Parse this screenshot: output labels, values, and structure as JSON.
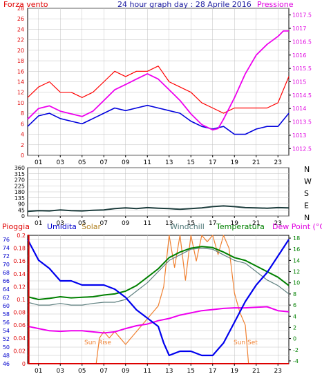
{
  "header": {
    "title": "24 hour graph day : 28 Aprile 2016"
  },
  "panels": {
    "wind": {
      "left_title": "Forza vento",
      "right_title": "Pressione"
    }
  },
  "legend": {
    "rain": "Pioggia",
    "humidity": "Umidita",
    "solar": "Solar",
    "windchill": "Windchill",
    "temperature": "Temperatura",
    "dewpoint": "Dew Point (°C)"
  },
  "annotations": {
    "sun_rise": "Sun Rise",
    "sun_set": "Sun Set"
  },
  "colors": {
    "wind_gust": "#ff0000",
    "wind_avg": "#0000dd",
    "pressure": "#ee00ee",
    "direction": "#1d3d3d",
    "rain": "#dd0000",
    "humidity": "#0000ee",
    "solar": "#f08030",
    "windchill": "#5f8080",
    "temperature": "#008000",
    "dewpoint": "#ee00ee",
    "grid": "#c0c0c0"
  },
  "chart_data": [
    {
      "type": "line",
      "name": "wind-pressure",
      "x_tick_labels": [
        "01",
        "03",
        "05",
        "07",
        "09",
        "11",
        "13",
        "15",
        "17",
        "19",
        "21",
        "23"
      ],
      "y_left": {
        "label": "Forza vento",
        "ylim": [
          0,
          28
        ],
        "ticks": [
          "0",
          "2",
          "4",
          "6",
          "8",
          "10",
          "12",
          "14",
          "16",
          "18",
          "20",
          "22",
          "24",
          "26",
          "28"
        ]
      },
      "y_right": {
        "label": "Pressione",
        "ylim": [
          1012.25,
          1017.75
        ],
        "ticks": [
          "1012.5",
          "1013",
          "1013.5",
          "1014",
          "1014.5",
          "1015",
          "1015.5",
          "1016",
          "1016.5",
          "1017",
          "1017.5"
        ]
      },
      "series": [
        {
          "key": "gust",
          "axis": "left",
          "hours": [
            0,
            1,
            2,
            3,
            4,
            5,
            6,
            7,
            8,
            9,
            10,
            11,
            12,
            13,
            14,
            15,
            16,
            17,
            18,
            19,
            20,
            21,
            22,
            23,
            24
          ],
          "values": [
            11,
            13,
            14,
            12,
            12,
            11,
            12,
            14,
            16,
            15,
            16,
            16,
            17,
            14,
            13,
            12,
            10,
            9,
            8,
            9,
            9,
            9,
            9,
            10,
            15
          ]
        },
        {
          "key": "avg",
          "axis": "left",
          "hours": [
            0,
            1,
            2,
            3,
            4,
            5,
            6,
            7,
            8,
            9,
            10,
            11,
            12,
            13,
            14,
            15,
            16,
            17,
            18,
            19,
            20,
            21,
            22,
            23,
            24
          ],
          "values": [
            5.5,
            7.5,
            8,
            7,
            6.5,
            6,
            7,
            8,
            9,
            8.5,
            9,
            9.5,
            9,
            8.5,
            8,
            6.5,
            5.5,
            5,
            5.5,
            4,
            4,
            5,
            5.5,
            5.5,
            8
          ]
        },
        {
          "key": "pressure",
          "axis": "right",
          "hours": [
            0,
            1,
            2,
            3,
            4,
            5,
            6,
            7,
            8,
            9,
            10,
            11,
            12,
            13,
            14,
            15,
            16,
            17,
            17.5,
            18,
            19,
            20,
            21,
            22,
            23,
            23.5,
            24
          ],
          "values": [
            1013.6,
            1014.0,
            1014.1,
            1013.9,
            1013.8,
            1013.7,
            1013.9,
            1014.3,
            1014.7,
            1014.9,
            1015.1,
            1015.3,
            1015.1,
            1014.7,
            1014.3,
            1013.8,
            1013.4,
            1013.2,
            1013.25,
            1013.6,
            1014.4,
            1015.3,
            1016.0,
            1016.4,
            1016.7,
            1016.9,
            1016.9
          ]
        }
      ]
    },
    {
      "type": "line",
      "name": "wind-direction",
      "x_tick_labels": [
        "01",
        "03",
        "05",
        "07",
        "09",
        "11",
        "13",
        "15",
        "17",
        "19",
        "21",
        "23"
      ],
      "y": {
        "ylim": [
          0,
          360
        ],
        "ticks": [
          "0",
          "45",
          "90",
          "135",
          "180",
          "225",
          "270",
          "315",
          "360"
        ]
      },
      "compass_labels": [
        "N",
        "W",
        "S",
        "E",
        "N"
      ],
      "series": [
        {
          "key": "direction",
          "hours": [
            0,
            1,
            2,
            3,
            4,
            5,
            6,
            7,
            8,
            9,
            10,
            11,
            12,
            13,
            14,
            15,
            16,
            17,
            18,
            19,
            20,
            21,
            22,
            23,
            24
          ],
          "values": [
            35,
            40,
            38,
            45,
            40,
            38,
            42,
            45,
            55,
            60,
            55,
            62,
            58,
            55,
            50,
            55,
            60,
            70,
            75,
            70,
            62,
            60,
            58,
            62,
            60
          ]
        }
      ]
    },
    {
      "type": "line",
      "name": "temperature-humidity",
      "x_tick_labels": [
        "01",
        "03",
        "05",
        "07",
        "09",
        "11",
        "13",
        "15",
        "17",
        "19",
        "21",
        "23"
      ],
      "y_humidity": {
        "ylim": [
          46,
          77
        ],
        "ticks": [
          "46",
          "48",
          "50",
          "52",
          "54",
          "56",
          "58",
          "60",
          "62",
          "64",
          "66",
          "68",
          "70",
          "72",
          "74",
          "76"
        ]
      },
      "y_rain": {
        "ylim": [
          0,
          0.2
        ],
        "ticks": [
          "0",
          "0.02",
          "0.04",
          "0.06",
          "0.08",
          "0.1",
          "0.12",
          "0.14",
          "0.16",
          "0.18",
          "0.2"
        ]
      },
      "y_temp": {
        "ylim": [
          -4.5,
          18.5
        ],
        "ticks": [
          "-4",
          "-2",
          "0",
          "2",
          "4",
          "6",
          "8",
          "10",
          "12",
          "14",
          "16",
          "18"
        ]
      },
      "series": [
        {
          "key": "humidity",
          "axis": "humidity",
          "hours": [
            0,
            1,
            2,
            3,
            4,
            5,
            6,
            7,
            8,
            9,
            10,
            11,
            12,
            12.5,
            13,
            14,
            15,
            16,
            17,
            18,
            19,
            20,
            21,
            22,
            23,
            24
          ],
          "values": [
            76,
            71,
            69,
            66,
            66,
            65,
            65,
            65,
            64,
            62,
            59,
            57,
            55,
            51,
            48,
            49,
            49,
            48,
            48,
            51,
            56,
            61,
            65,
            68,
            72,
            76
          ]
        },
        {
          "key": "temperature",
          "axis": "temp",
          "hours": [
            0,
            1,
            2,
            3,
            4,
            5,
            6,
            7,
            8,
            9,
            10,
            11,
            12,
            13,
            14,
            15,
            16,
            17,
            18,
            19,
            20,
            21,
            22,
            23,
            24
          ],
          "values": [
            7.5,
            7.0,
            7.2,
            7.5,
            7.3,
            7.4,
            7.5,
            7.8,
            8.0,
            8.5,
            9.5,
            11.0,
            12.5,
            14.5,
            15.5,
            16.2,
            16.5,
            16.3,
            15.5,
            14.5,
            14.0,
            13.0,
            12.0,
            11.0,
            9.5
          ]
        },
        {
          "key": "windchill",
          "axis": "temp",
          "hours": [
            0,
            1,
            2,
            3,
            4,
            5,
            6,
            7,
            8,
            9,
            10,
            11,
            12,
            13,
            14,
            15,
            16,
            17,
            18,
            19,
            20,
            21,
            22,
            23,
            24
          ],
          "values": [
            6.5,
            6.0,
            6.0,
            6.3,
            6.0,
            6.0,
            6.3,
            6.5,
            6.5,
            7.0,
            8.5,
            10.0,
            12.0,
            14.0,
            15.0,
            16.0,
            16.2,
            16.0,
            15.0,
            14.0,
            13.5,
            12.0,
            10.5,
            9.5,
            8.0
          ]
        },
        {
          "key": "dewpoint",
          "axis": "temp",
          "hours": [
            0,
            1,
            2,
            3,
            4,
            5,
            6,
            7,
            8,
            9,
            10,
            11,
            12,
            13,
            14,
            15,
            16,
            17,
            18,
            19,
            20,
            21,
            22,
            23,
            24
          ],
          "values": [
            2.2,
            1.8,
            1.4,
            1.3,
            1.4,
            1.4,
            1.2,
            1.0,
            1.2,
            1.8,
            2.3,
            2.6,
            3.2,
            3.6,
            4.2,
            4.6,
            5.0,
            5.2,
            5.4,
            5.5,
            5.5,
            5.6,
            5.7,
            5.0,
            4.8
          ]
        },
        {
          "key": "solar",
          "axis": "rain",
          "hours": [
            6.3,
            6.6,
            7,
            7.5,
            8,
            8.5,
            9,
            9.5,
            10,
            10.5,
            11,
            11.5,
            12,
            12.5,
            13,
            13.5,
            14,
            14.5,
            15,
            15.5,
            16,
            16.5,
            17,
            17.5,
            18,
            18.5,
            19,
            19.5,
            20,
            20.3
          ],
          "values": [
            0,
            0.04,
            0.05,
            0.04,
            0.05,
            0.04,
            0.03,
            0.04,
            0.05,
            0.06,
            0.07,
            0.08,
            0.09,
            0.12,
            0.2,
            0.15,
            0.2,
            0.13,
            0.2,
            0.16,
            0.2,
            0.19,
            0.2,
            0.17,
            0.2,
            0.18,
            0.11,
            0.08,
            0.06,
            0
          ]
        },
        {
          "key": "rain",
          "axis": "rain",
          "hours": [
            0,
            0.1,
            0.1,
            24
          ],
          "values": [
            0.2,
            0.2,
            0,
            0
          ]
        }
      ]
    }
  ]
}
